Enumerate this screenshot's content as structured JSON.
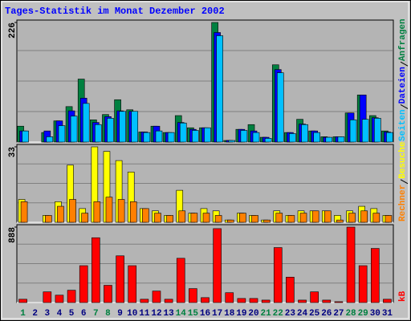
{
  "chart_data": [
    {
      "type": "bar",
      "title": "Tages-Statistik im Monat Dezember 2002",
      "ylim": [
        0,
        226
      ],
      "yticks": [
        226
      ],
      "series": [
        {
          "name": "Anfragen",
          "color": "#008040",
          "values": [
            30,
            0,
            18,
            40,
            67,
            119,
            42,
            52,
            80,
            61,
            19,
            30,
            18,
            50,
            27,
            27,
            226,
            3,
            24,
            33,
            9,
            146,
            18,
            43,
            21,
            10,
            10,
            55,
            89,
            50,
            21
          ]
        },
        {
          "name": "Dateien",
          "color": "#0000ff",
          "values": [
            21,
            0,
            21,
            40,
            59,
            83,
            37,
            48,
            59,
            58,
            19,
            30,
            18,
            37,
            24,
            27,
            207,
            3,
            24,
            21,
            9,
            137,
            18,
            34,
            21,
            9,
            10,
            55,
            89,
            46,
            19
          ]
        },
        {
          "name": "Seiten",
          "color": "#00c0ff",
          "values": [
            21,
            0,
            10,
            31,
            49,
            73,
            33,
            45,
            58,
            58,
            18,
            21,
            18,
            36,
            22,
            27,
            201,
            3,
            22,
            18,
            7,
            131,
            16,
            33,
            18,
            9,
            10,
            42,
            43,
            45,
            18
          ]
        }
      ]
    },
    {
      "type": "bar",
      "ylim": [
        0,
        33
      ],
      "yticks": [
        33
      ],
      "series": [
        {
          "name": "Besuche",
          "color": "#ffff00",
          "values": [
            10,
            0,
            3,
            9,
            25,
            6,
            33,
            31,
            27,
            22,
            6,
            5,
            3,
            14,
            4,
            6,
            5,
            1,
            4,
            3,
            1,
            5,
            3,
            5,
            5,
            5,
            3,
            5,
            7,
            6,
            3
          ]
        },
        {
          "name": "Rechner",
          "color": "#ff8000",
          "values": [
            9,
            0,
            3,
            7,
            10,
            4,
            9,
            11,
            10,
            9,
            6,
            4,
            3,
            5,
            4,
            4,
            3,
            1,
            4,
            3,
            1,
            4,
            3,
            4,
            5,
            5,
            1,
            4,
            5,
            4,
            3
          ]
        }
      ]
    },
    {
      "type": "bar",
      "ylim": [
        0,
        888
      ],
      "yticks": [
        888
      ],
      "categories": [
        "1",
        "2",
        "3",
        "4",
        "5",
        "6",
        "7",
        "8",
        "9",
        "10",
        "11",
        "12",
        "13",
        "14",
        "15",
        "16",
        "17",
        "18",
        "19",
        "20",
        "21",
        "22",
        "23",
        "24",
        "25",
        "26",
        "27",
        "28",
        "29",
        "30",
        "31"
      ],
      "category_colors": [
        "#008040",
        "#000080",
        "#000080",
        "#000080",
        "#000080",
        "#000080",
        "#008040",
        "#008040",
        "#000080",
        "#000080",
        "#000080",
        "#000080",
        "#000080",
        "#008040",
        "#008040",
        "#000080",
        "#000080",
        "#000080",
        "#000080",
        "#000080",
        "#008040",
        "#008040",
        "#000080",
        "#000080",
        "#000080",
        "#000080",
        "#000080",
        "#008040",
        "#008040",
        "#000080",
        "#000080"
      ],
      "series": [
        {
          "name": "kB",
          "color": "#ff0000",
          "values": [
            39,
            0,
            126,
            87,
            145,
            434,
            763,
            203,
            550,
            434,
            39,
            135,
            39,
            521,
            164,
            58,
            870,
            116,
            48,
            48,
            29,
            647,
            299,
            29,
            126,
            29,
            10,
            888,
            434,
            637,
            39
          ]
        }
      ]
    }
  ]
}
